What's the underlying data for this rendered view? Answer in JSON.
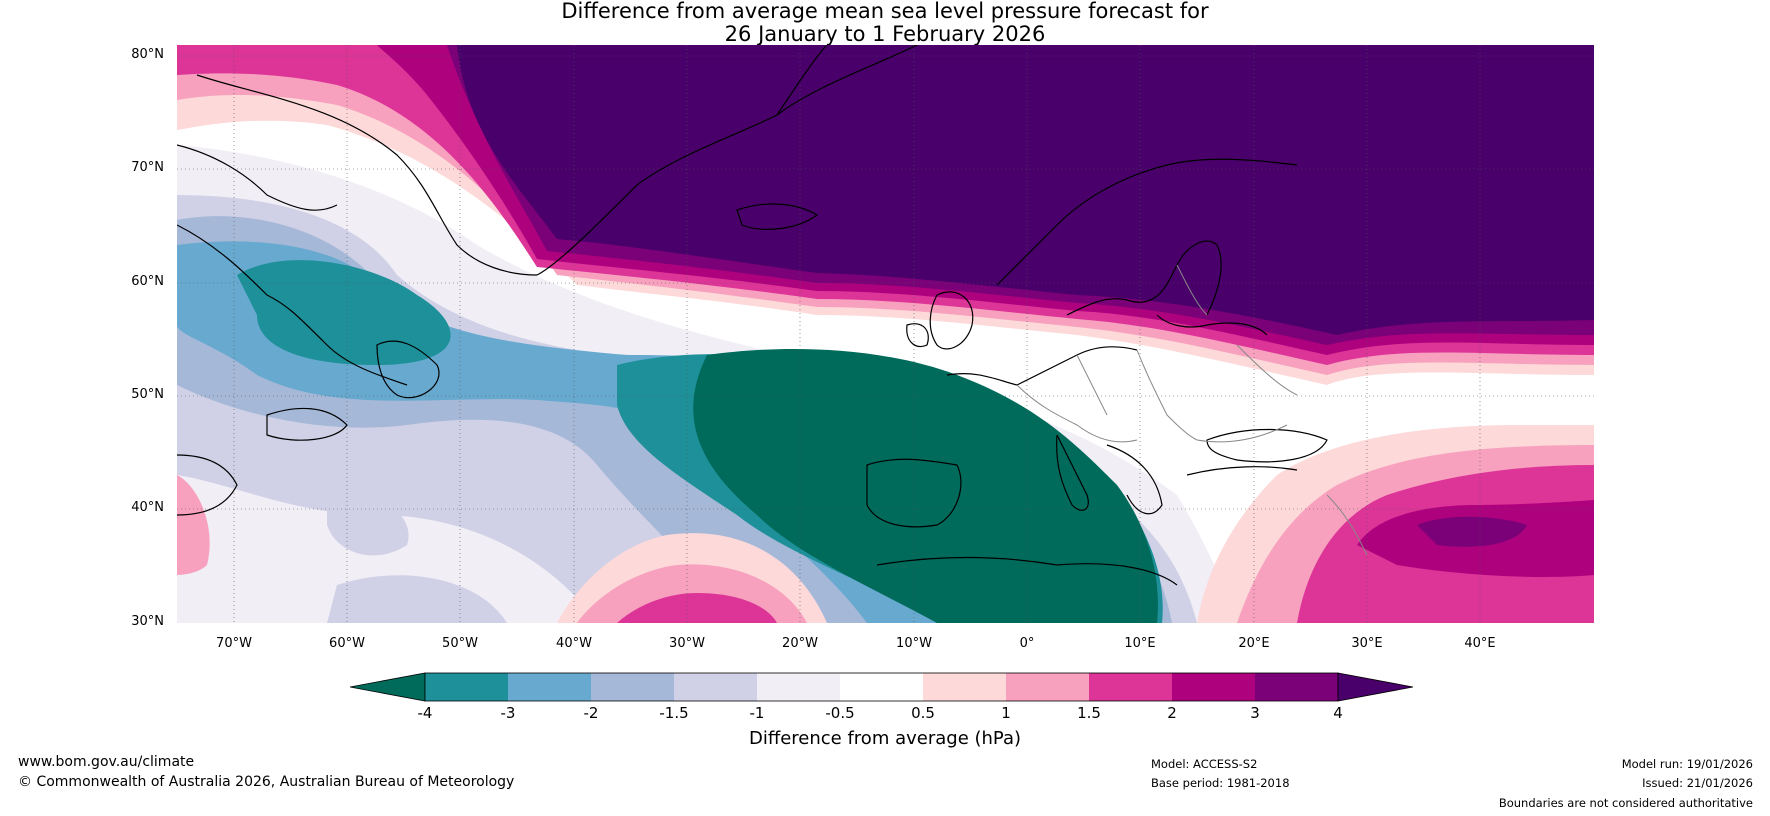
{
  "title": {
    "line1": "Difference from average mean sea level pressure forecast for",
    "line2": "26 January to 1 February 2026"
  },
  "axes": {
    "lat_labels": [
      "80°N",
      "70°N",
      "60°N",
      "50°N",
      "40°N",
      "30°N"
    ],
    "lon_labels": [
      "70°W",
      "60°W",
      "50°W",
      "40°W",
      "30°W",
      "20°W",
      "10°W",
      "0°",
      "10°E",
      "20°E",
      "30°E",
      "40°E"
    ],
    "lat_range": [
      30,
      81
    ],
    "lon_range": [
      -75,
      50
    ]
  },
  "colorbar": {
    "ticks": [
      "-4",
      "-3",
      "-2",
      "-1.5",
      "-1",
      "-0.5",
      "0.5",
      "1",
      "1.5",
      "2",
      "3",
      "4"
    ],
    "colors": [
      "#006b5b",
      "#1d9099",
      "#67a9cf",
      "#a6b8d8",
      "#d0d1e6",
      "#f1eef6",
      "#ffffff",
      "#fdd9d9",
      "#f7a1be",
      "#dd3497",
      "#ae017e",
      "#7a0177",
      "#49006a"
    ],
    "label": "Difference from average (hPa)"
  },
  "map_colors": {
    "land_outline": "#000000",
    "border": "#888888",
    "gridline": "#555555"
  },
  "footer": {
    "website": "www.bom.gov.au/climate",
    "copyright": "© Commonwealth of Australia 2026, Australian Bureau of Meteorology",
    "model": "Model: ACCESS-S2",
    "base_period": "Base period: 1981-2018",
    "model_run": "Model run: 19/01/2026",
    "issued": "Issued: 21/01/2026",
    "disclaimer": "Boundaries are not considered authoritative"
  }
}
